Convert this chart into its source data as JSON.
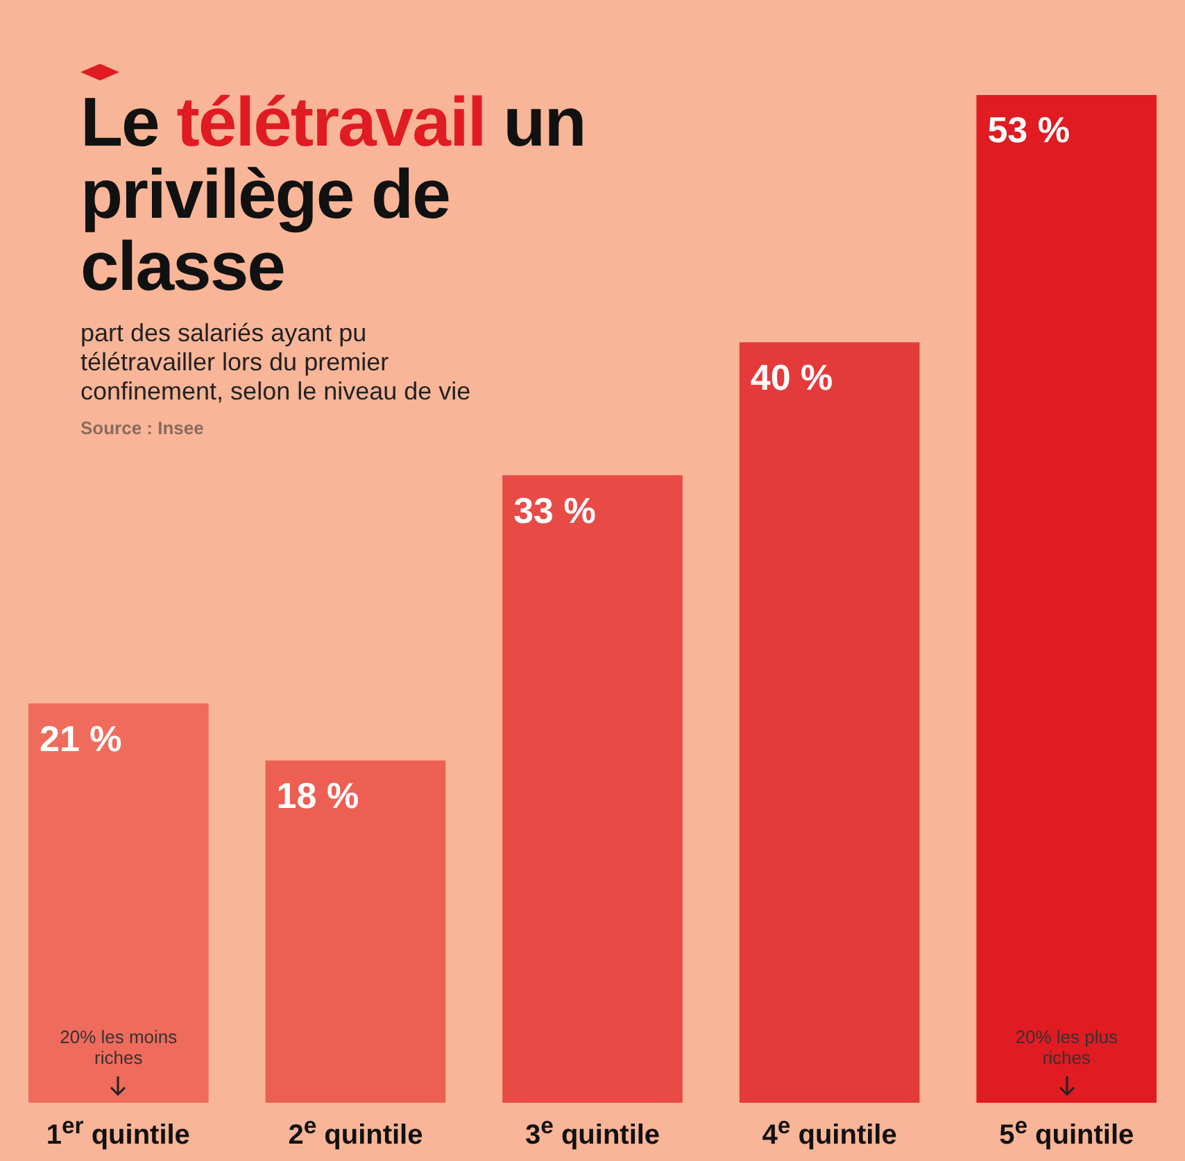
{
  "chart_data": {
    "type": "bar",
    "title": "Le télétravail un privilège de classe",
    "subtitle": "part des salariés ayant pu télétravailler lors du premier confinement, selon le niveau de vie",
    "categories": [
      "1$^{er}$ quintile",
      "2$^{e}$ quintile",
      "3$^{e}$ quintile",
      "4$^{e}$ quintile",
      "5$^{e}$ quintile"
    ],
    "values": [
      21,
      18,
      33,
      40,
      53
    ],
    "colors": [
      "#ef6b5c",
      "#ec5f52",
      "#e84a45",
      "#e53a3a",
      "#e01b22"
    ],
    "value_labels": [
      "21 %",
      "18 %",
      "33 %",
      "40 %",
      "53 %"
    ],
    "ylim": [
      0,
      58
    ],
    "tick_labels": false,
    "legend": false,
    "annotations": [
      "Source : Insee",
      {
        "text": "20% les moins riches",
        "x": "1$^{er}$ quintile"
      },
      {
        "text": "20% les plus riches",
        "x": "5$^{e}$ quintile"
      }
    ]
  }
}
